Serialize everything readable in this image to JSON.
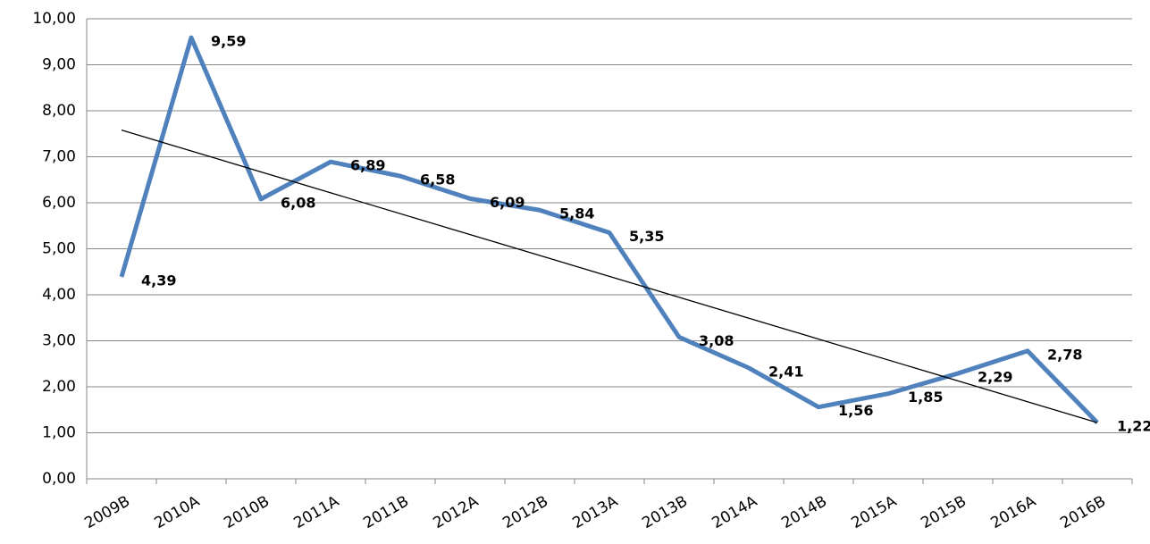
{
  "chart_data": {
    "type": "line",
    "categories": [
      "2009B",
      "2010A",
      "2010B",
      "2011A",
      "2011B",
      "2012A",
      "2012B",
      "2013A",
      "2013B",
      "2014A",
      "2014B",
      "2015A",
      "2015B",
      "2016A",
      "2016B"
    ],
    "series": [
      {
        "color": "#4f81bd",
        "values": [
          4.39,
          9.59,
          6.08,
          6.89,
          6.58,
          6.09,
          5.84,
          5.35,
          3.08,
          2.41,
          1.56,
          1.85,
          2.29,
          2.78,
          1.22
        ],
        "value_labels": [
          "4,39",
          "9,59",
          "6,08",
          "6,89",
          "6,58",
          "6,09",
          "5,84",
          "5,35",
          "3,08",
          "2,41",
          "1,56",
          "1,85",
          "2,29",
          "2,78",
          "1,22"
        ]
      }
    ],
    "trendline": {
      "color": "#000000",
      "values": [
        7.58,
        1.22
      ]
    },
    "ylim": [
      0,
      10
    ],
    "yticks": [
      {
        "value": 0,
        "label": "0,00"
      },
      {
        "value": 1,
        "label": "1,00"
      },
      {
        "value": 2,
        "label": "2,00"
      },
      {
        "value": 3,
        "label": "3,00"
      },
      {
        "value": 4,
        "label": "4,00"
      },
      {
        "value": 5,
        "label": "5,00"
      },
      {
        "value": 6,
        "label": "6,00"
      },
      {
        "value": 7,
        "label": "7,00"
      },
      {
        "value": 8,
        "label": "8,00"
      },
      {
        "value": 9,
        "label": "9,00"
      },
      {
        "value": 10,
        "label": "10,00"
      }
    ],
    "grid": true
  }
}
